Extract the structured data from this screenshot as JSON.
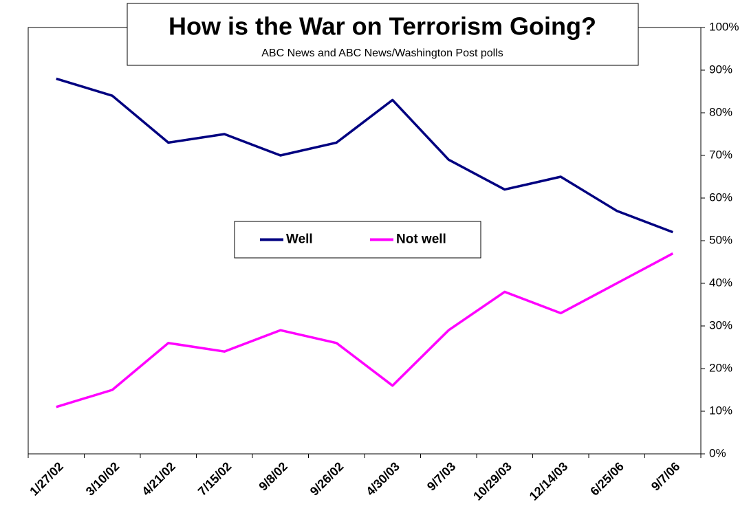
{
  "chart_data": {
    "type": "line",
    "title": "How is the War on Terrorism Going?",
    "subtitle": "ABC News and ABC News/Washington Post polls",
    "categories": [
      "1/27/02",
      "3/10/02",
      "4/21/02",
      "7/15/02",
      "9/8/02",
      "9/26/02",
      "4/30/03",
      "9/7/03",
      "10/29/03",
      "12/14/03",
      "6/25/06",
      "9/7/06"
    ],
    "series": [
      {
        "name": "Well",
        "color": "#000080",
        "values": [
          88,
          84,
          73,
          75,
          70,
          73,
          83,
          69,
          62,
          65,
          57,
          52
        ]
      },
      {
        "name": "Not well",
        "color": "#ff00ff",
        "values": [
          11,
          15,
          26,
          24,
          29,
          26,
          16,
          29,
          38,
          33,
          40,
          47
        ]
      }
    ],
    "ylim": [
      0,
      100
    ],
    "yticks": [
      {
        "value": 0,
        "label": "0%"
      },
      {
        "value": 10,
        "label": "10%"
      },
      {
        "value": 20,
        "label": "20%"
      },
      {
        "value": 30,
        "label": "30%"
      },
      {
        "value": 40,
        "label": "40%"
      },
      {
        "value": 50,
        "label": "50%"
      },
      {
        "value": 60,
        "label": "60%"
      },
      {
        "value": 70,
        "label": "70%"
      },
      {
        "value": 80,
        "label": "80%"
      },
      {
        "value": 90,
        "label": "90%"
      },
      {
        "value": 100,
        "label": "100%"
      }
    ],
    "yaxis_side": "right",
    "grid": false,
    "legend": "center"
  }
}
